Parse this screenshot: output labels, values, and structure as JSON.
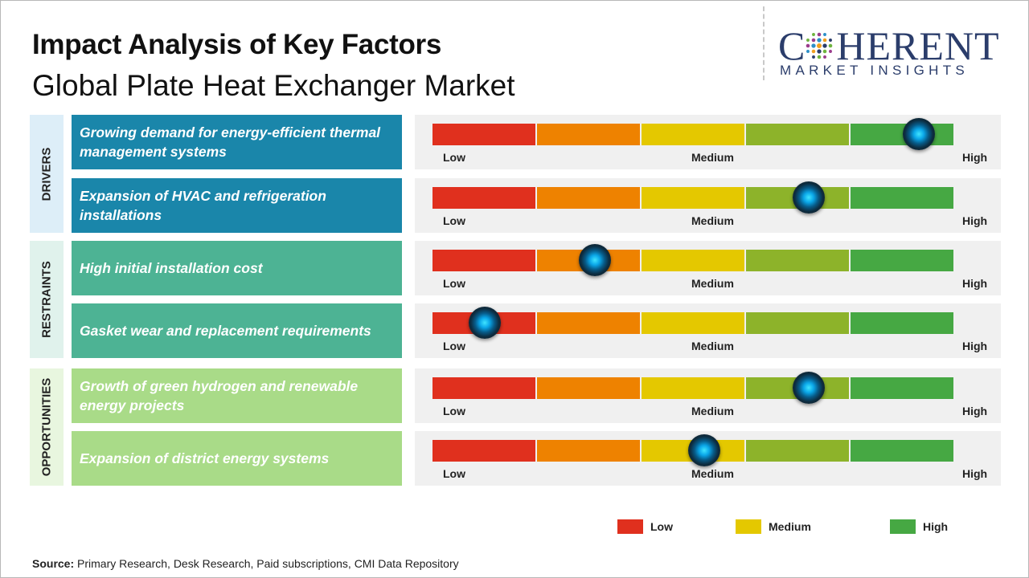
{
  "header": {
    "title": "Impact Analysis of Key Factors",
    "subtitle": "Global Plate Heat Exchanger Market"
  },
  "logo": {
    "top_text": "C HERENT",
    "bottom_text": "MARKET INSIGHTS"
  },
  "scale_labels": {
    "low": "Low",
    "medium": "Medium",
    "high": "High"
  },
  "segment_colors": [
    "#e0301e",
    "#ee8200",
    "#e4c800",
    "#8db32a",
    "#46a843"
  ],
  "category_colors": {
    "DRIVERS": "#1a86aa",
    "RESTRAINTS": "#4db394",
    "OPPORTUNITIES": "#a9db88"
  },
  "categories": [
    {
      "name": "DRIVERS",
      "bg": "#ddeef8"
    },
    {
      "name": "RESTRAINTS",
      "bg": "#e0f2ec"
    },
    {
      "name": "OPPORTUNITIES",
      "bg": "#e8f6df"
    }
  ],
  "chart_data": {
    "type": "table",
    "title": "Impact Analysis of Key Factors",
    "subtitle": "Global Plate Heat Exchanger Market",
    "scale": [
      "Low",
      "Medium",
      "High"
    ],
    "rows": [
      {
        "category": "DRIVERS",
        "factor": "Growing demand for energy-efficient thermal management systems",
        "impact": 0.93
      },
      {
        "category": "DRIVERS",
        "factor": "Expansion of HVAC and refrigeration installations",
        "impact": 0.72
      },
      {
        "category": "RESTRAINTS",
        "factor": "High initial installation cost",
        "impact": 0.31
      },
      {
        "category": "RESTRAINTS",
        "factor": "Gasket wear and replacement requirements",
        "impact": 0.1
      },
      {
        "category": "OPPORTUNITIES",
        "factor": "Growth of green hydrogen and renewable energy projects",
        "impact": 0.72
      },
      {
        "category": "OPPORTUNITIES",
        "factor": "Expansion of district energy systems",
        "impact": 0.52
      }
    ],
    "legend": [
      {
        "label": "Low",
        "color": "#e0301e"
      },
      {
        "label": "Medium",
        "color": "#e4c800"
      },
      {
        "label": "High",
        "color": "#46a843"
      }
    ]
  },
  "source": {
    "label": "Source:",
    "text": "Primary Research, Desk Research, Paid subscriptions, CMI Data Repository"
  }
}
